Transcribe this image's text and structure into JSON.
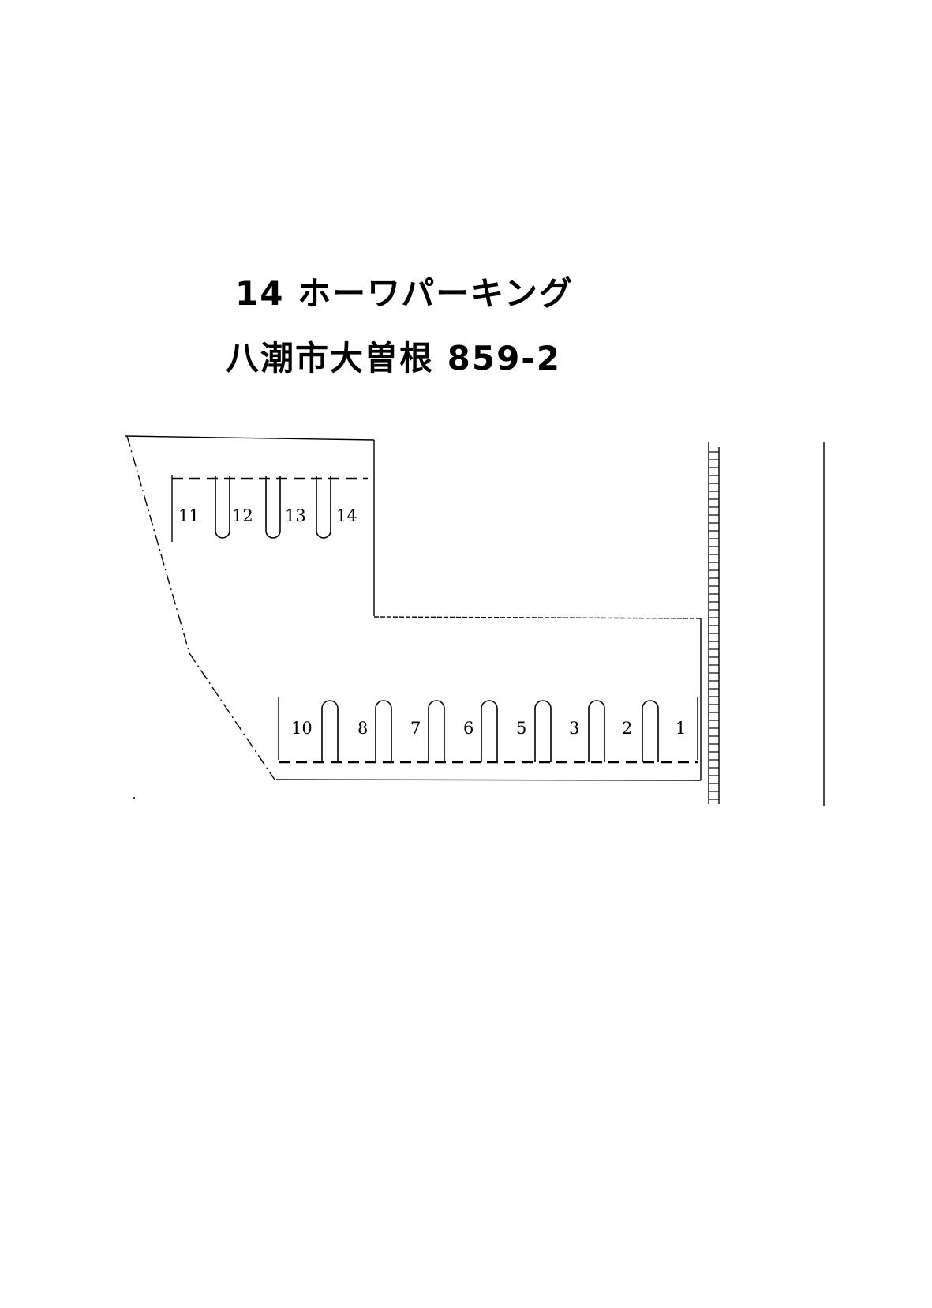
{
  "title": "14 ホーワパーキング",
  "address": "八潮市大曽根 859-2",
  "spaces_top": [
    "11",
    "12",
    "13",
    "14"
  ],
  "spaces_bottom": [
    "10",
    "8",
    "7",
    "6",
    "5",
    "3",
    "2",
    "1"
  ]
}
